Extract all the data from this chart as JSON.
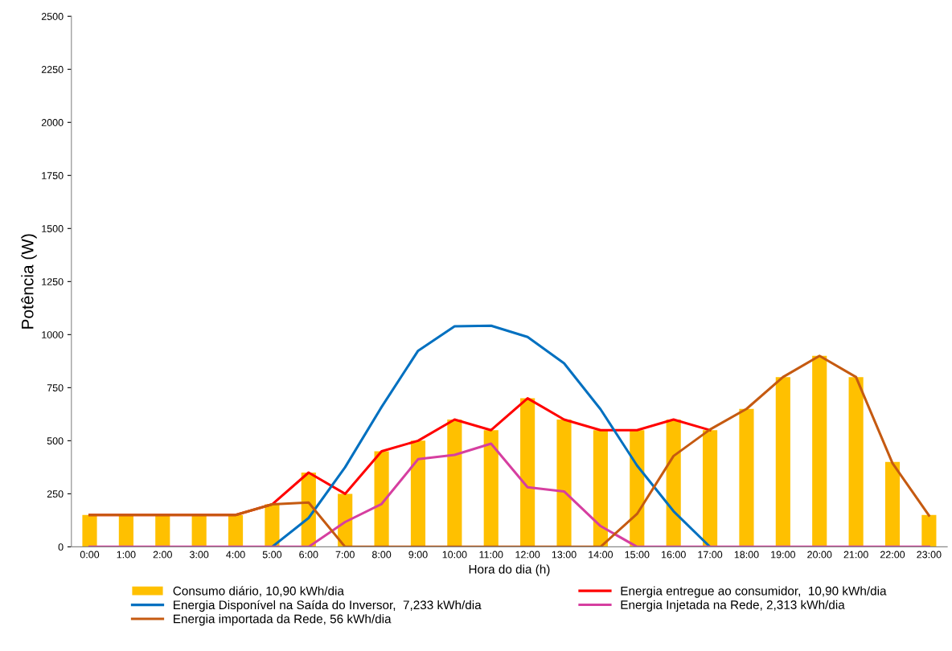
{
  "chart_data": {
    "type": "bar",
    "xlabel": "Hora do dia (h)",
    "ylabel": "Potência (W)",
    "categories": [
      "0:00",
      "1:00",
      "2:00",
      "3:00",
      "4:00",
      "5:00",
      "6:00",
      "7:00",
      "8:00",
      "9:00",
      "10:00",
      "11:00",
      "12:00",
      "13:00",
      "14:00",
      "15:00",
      "16:00",
      "17:00",
      "18:00",
      "19:00",
      "20:00",
      "21:00",
      "22:00",
      "23:00"
    ],
    "series": [
      {
        "name": "Consumo diário, 10,90 kWh/dia",
        "color": "#ffc000",
        "values": [
          150,
          150,
          150,
          150,
          150,
          200,
          350,
          250,
          450,
          500,
          600,
          550,
          700,
          600,
          550,
          550,
          600,
          550,
          650,
          800,
          900,
          800,
          400,
          150
        ]
      },
      {
        "name": "Energia entregue ao consumidor,  10,90 kWh/dia",
        "type": "line",
        "color": "#ff0000",
        "values": [
          150,
          150,
          150,
          150,
          150,
          200,
          350,
          250,
          450,
          500,
          600,
          550,
          700,
          600,
          550,
          550,
          600,
          550,
          null,
          null,
          null,
          null,
          null,
          null
        ]
      },
      {
        "name": "Energia Disponível na Saída do Inversor,  7,233 kWh/dia",
        "type": "line",
        "color": "#0070c0",
        "values": [
          null,
          null,
          null,
          null,
          null,
          0,
          136,
          375,
          659,
          924,
          1039,
          1042,
          989,
          865,
          648,
          383,
          168,
          0,
          null,
          null,
          null,
          null,
          null,
          null
        ]
      },
      {
        "name": "Energia Injetada na Rede, 2,313 kWh/dia",
        "type": "line",
        "color": "#d63fa0",
        "values": [
          0,
          0,
          0,
          0,
          0,
          0,
          0,
          117,
          202,
          413,
          433,
          486,
          281,
          261,
          98,
          0,
          0,
          0,
          0,
          0,
          0,
          0,
          0,
          0
        ]
      },
      {
        "name": "Energia importada da Rede, 56 kWh/dia",
        "type": "line",
        "color": "#c55a11",
        "values": [
          150,
          150,
          150,
          150,
          150,
          200,
          209,
          0,
          0,
          0,
          0,
          0,
          0,
          0,
          0,
          155,
          428,
          553,
          650,
          800,
          900,
          800,
          394,
          148
        ]
      }
    ],
    "ylim": [
      0,
      2500
    ],
    "yticks": [
      0,
      250,
      500,
      750,
      1000,
      1250,
      1500,
      1750,
      2000,
      2250,
      2500
    ],
    "grid": false,
    "legend": "bottom",
    "marker": "none",
    "line_style": "solid"
  }
}
